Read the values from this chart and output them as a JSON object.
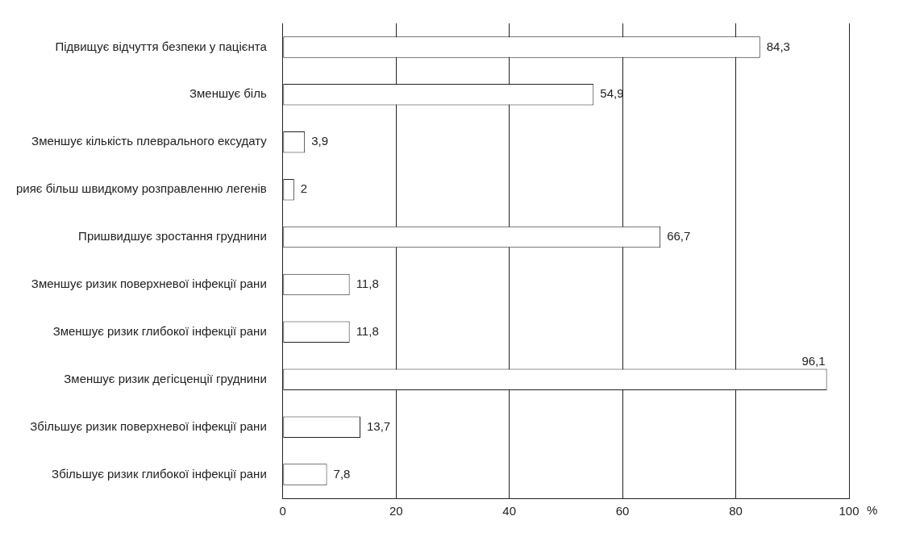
{
  "chart_data": {
    "type": "bar",
    "orientation": "horizontal",
    "xlabel": "%",
    "categories": [
      "Підвищує відчуття безпеки у пацієнта",
      "Зменшує біль",
      "Зменшує кількість плеврального ексудату",
      "рияє більш швидкому розправленню легенів",
      "Пришвидшує зростання груднини",
      "Зменшує ризик поверхневої інфекції рани",
      "Зменшує ризик глибокої інфекції рани",
      "Зменшує ризик дегісценції груднини",
      "Збільшує ризик поверхневої інфекції рани",
      "Збільшує ризик глибокої інфекції рани"
    ],
    "values": [
      84.3,
      54.9,
      3.9,
      2,
      66.7,
      11.8,
      11.8,
      96.1,
      13.7,
      7.8
    ],
    "value_labels": [
      "84,3",
      "54,9",
      "3,9",
      "2",
      "66,7",
      "11,8",
      "11,8",
      "96,1",
      "13,7",
      "7,8"
    ],
    "color": "#ffffff",
    "xlim": [
      0,
      100
    ],
    "xticks": [
      0,
      20,
      40,
      60,
      80,
      100
    ],
    "grid": "x",
    "legend": false
  }
}
